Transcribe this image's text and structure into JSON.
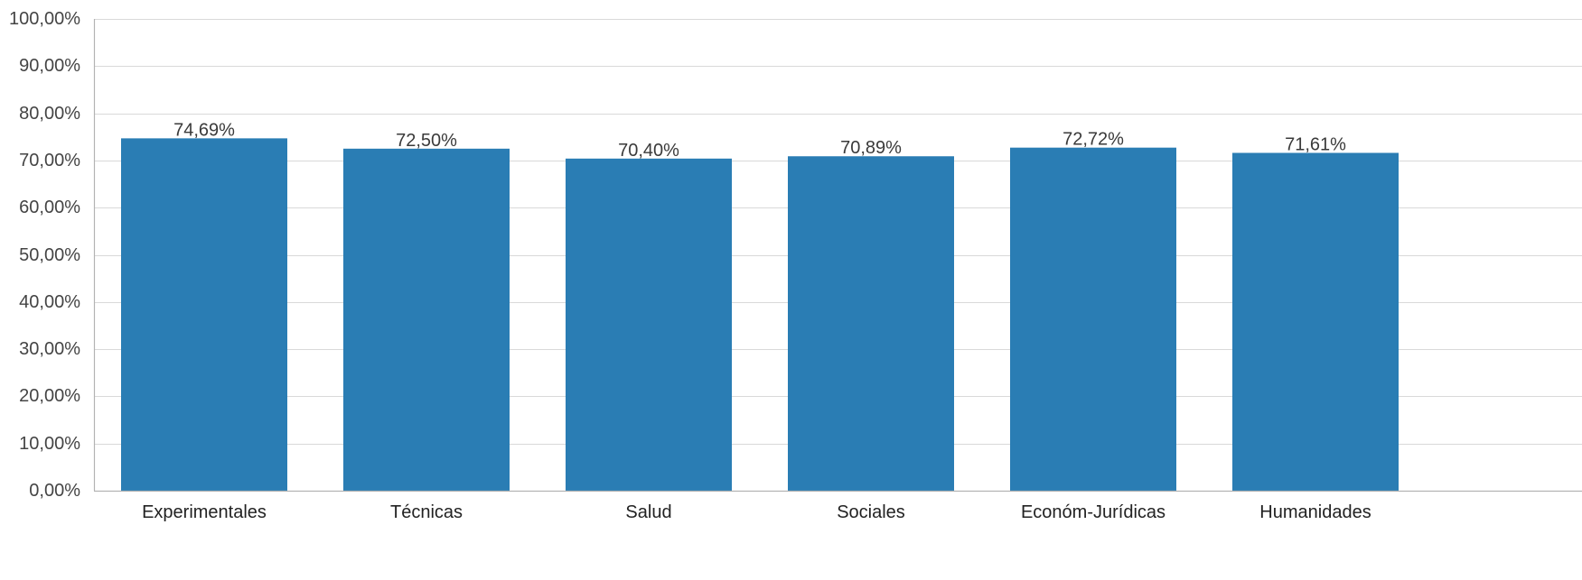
{
  "chart_data": {
    "type": "bar",
    "title": "",
    "xlabel": "",
    "ylabel": "",
    "categories": [
      "Experimentales",
      "Técnicas",
      "Salud",
      "Sociales",
      "Económ-Jurídicas",
      "Humanidades"
    ],
    "values": [
      74.69,
      72.5,
      70.4,
      70.89,
      72.72,
      71.61
    ],
    "value_labels": [
      "74,69%",
      "72,50%",
      "70,40%",
      "70,89%",
      "72,72%",
      "71,61%"
    ],
    "ylim": [
      0,
      100
    ],
    "yticks": [
      0,
      10,
      20,
      30,
      40,
      50,
      60,
      70,
      80,
      90,
      100
    ],
    "ytick_labels": [
      "0,00%",
      "10,00%",
      "20,00%",
      "30,00%",
      "40,00%",
      "50,00%",
      "60,00%",
      "70,00%",
      "80,00%",
      "90,00%",
      "100,00%"
    ],
    "grid": true,
    "legend": "none",
    "colors": {
      "bar": "#2a7db4",
      "grid": "#d9d9d9",
      "axis": "#b3b3b3"
    }
  }
}
